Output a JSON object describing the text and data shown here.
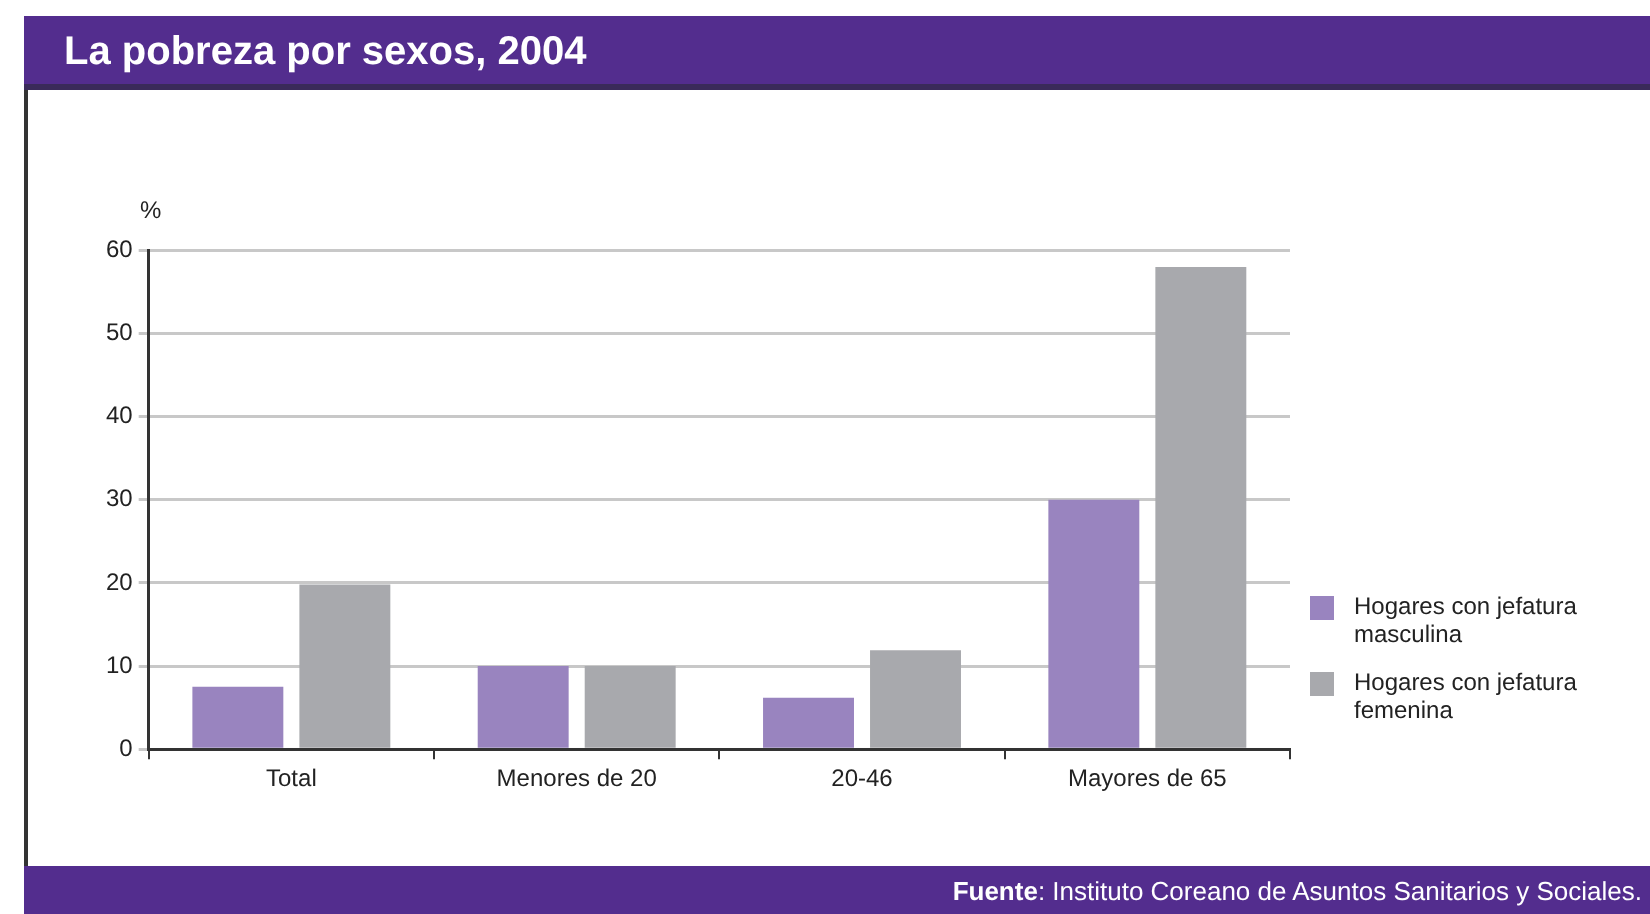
{
  "chart_data": {
    "type": "bar",
    "title": "La pobreza por sexos, 2004",
    "ylabel": "%",
    "categories": [
      "Total",
      "Menores de 20",
      "20-46",
      "Mayores de 65"
    ],
    "series": [
      {
        "name": "Hogares con jefatura masculina",
        "color": "#9984bf",
        "values": [
          7.5,
          10,
          6.2,
          30
        ]
      },
      {
        "name": "Hogares con jefatura femenina",
        "color": "#a8a9ad",
        "values": [
          19.8,
          10,
          11.9,
          58
        ]
      }
    ],
    "ylim": [
      0,
      60
    ],
    "yticks": [
      0,
      10,
      20,
      30,
      40,
      50,
      60
    ],
    "grid": "y",
    "legend": "right",
    "annotations": [
      "Fuente: Instituto Coreano de Asuntos Sanitarios y Sociales."
    ]
  }
}
